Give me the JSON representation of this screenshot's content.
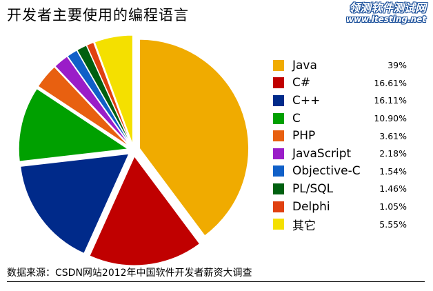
{
  "title": "开发者主要使用的编程语言",
  "watermark": {
    "cn": "领测软件测试网",
    "url": "www.ltesting.net"
  },
  "source": "数据来源：CSDN网站2012年中国软件开发者薪资大调查",
  "chart_data": {
    "type": "pie",
    "title": "开发者主要使用的编程语言",
    "legend_position": "right",
    "slices": [
      {
        "label": "Java",
        "value": 39,
        "display": "39%",
        "color": "#f0ab00",
        "exploded": true
      },
      {
        "label": "C#",
        "value": 16.61,
        "display": "16.61%",
        "color": "#c00000",
        "exploded": true
      },
      {
        "label": "C++",
        "value": 16.11,
        "display": "16.11%",
        "color": "#002a8a",
        "exploded": true
      },
      {
        "label": "C",
        "value": 10.9,
        "display": "10.90%",
        "color": "#00a000",
        "exploded": true
      },
      {
        "label": "PHP",
        "value": 3.61,
        "display": "3.61%",
        "color": "#e86010",
        "exploded": true
      },
      {
        "label": "JavaScript",
        "value": 2.18,
        "display": "2.18%",
        "color": "#9a1dc8",
        "exploded": true
      },
      {
        "label": "Objective-C",
        "value": 1.54,
        "display": "1.54%",
        "color": "#1060c8",
        "exploded": true
      },
      {
        "label": "PL/SQL",
        "value": 1.46,
        "display": "1.46%",
        "color": "#006010",
        "exploded": true
      },
      {
        "label": "Delphi",
        "value": 1.05,
        "display": "1.05%",
        "color": "#e04010",
        "exploded": true
      },
      {
        "label": "其它",
        "value": 5.55,
        "display": "5.55%",
        "color": "#f4e000",
        "exploded": true
      }
    ]
  }
}
